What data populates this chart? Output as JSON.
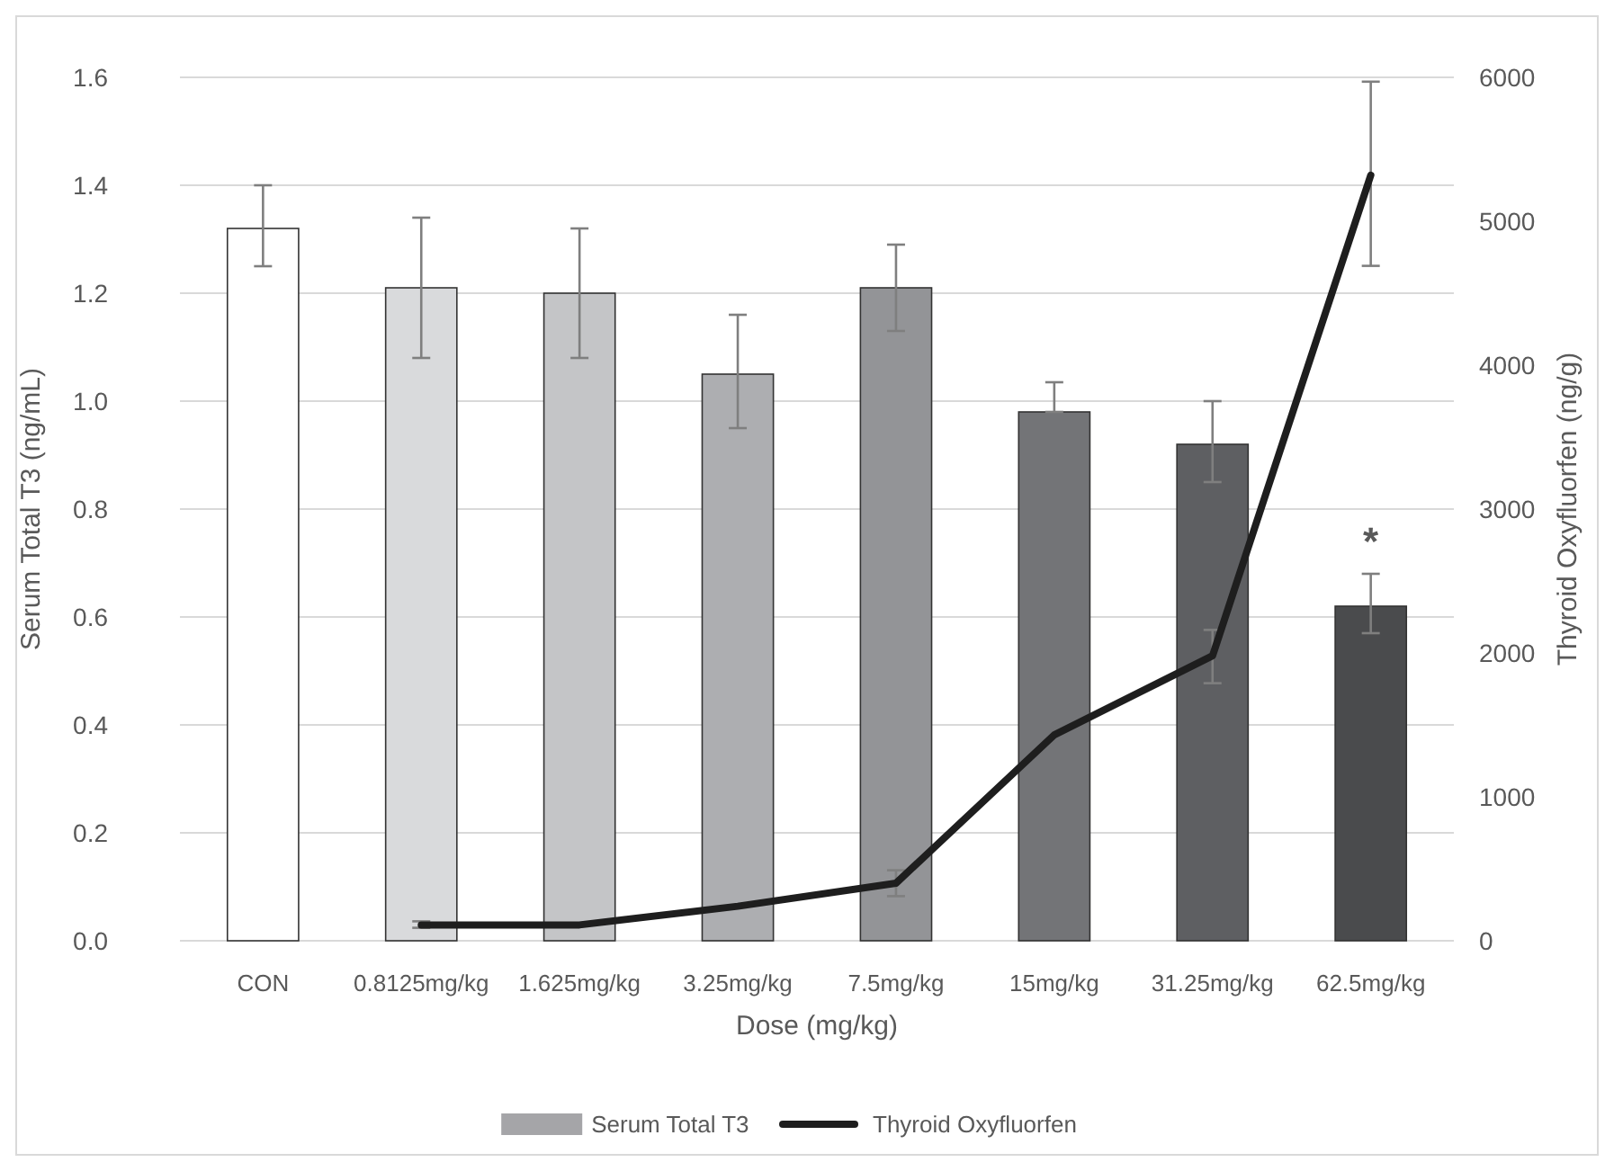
{
  "chart_data": {
    "type": "bar",
    "xlabel": "Dose (mg/kg)",
    "ylabel": "Serum Total T3 (ng/mL)",
    "y2label": "Thyroid Oxyfluorfen (ng/g)",
    "categories": [
      "CON",
      "0.8125mg/kg",
      "1.625mg/kg",
      "3.25mg/kg",
      "7.5mg/kg",
      "15mg/kg",
      "31.25mg/kg",
      "62.5mg/kg"
    ],
    "series": [
      {
        "name": "Serum Total T3",
        "color": "#a5a5a8",
        "colors": [
          "#ffffff",
          "#d9dadc",
          "#c4c5c7",
          "#adaeb1",
          "#939497",
          "#737477",
          "#5e5f62",
          "#4a4b4d"
        ],
        "values": [
          1.32,
          1.21,
          1.2,
          1.05,
          1.21,
          0.98,
          0.92,
          0.62
        ],
        "errors": [
          [
            1.25,
            1.4
          ],
          [
            1.08,
            1.34
          ],
          [
            1.08,
            1.32
          ],
          [
            0.95,
            1.16
          ],
          [
            1.13,
            1.29
          ],
          [
            0.98,
            1.035
          ],
          [
            0.85,
            1.0
          ],
          [
            0.57,
            0.68
          ]
        ]
      },
      {
        "name": "Thyroid Oxyfluorfen",
        "type": "line",
        "axis": "y2",
        "color": "#1e1e1e",
        "values": [
          null,
          110,
          110,
          240,
          400,
          1430,
          1980,
          5320
        ],
        "errors": [
          null,
          [
            90,
            135
          ],
          null,
          null,
          [
            310,
            490
          ],
          null,
          [
            1790,
            2160
          ],
          [
            4690,
            5970
          ]
        ]
      }
    ],
    "annotations": [
      {
        "text": "*",
        "x": "62.5mg/kg",
        "y": 0.62
      }
    ],
    "ylim": [
      0,
      1.6
    ],
    "yticks": [
      {
        "value": 0,
        "label": "0.0"
      },
      {
        "value": 0.2,
        "label": "0.2"
      },
      {
        "value": 0.4,
        "label": "0.4"
      },
      {
        "value": 0.6,
        "label": "0.6"
      },
      {
        "value": 0.8,
        "label": "0.8"
      },
      {
        "value": 1,
        "label": "1.0"
      },
      {
        "value": 1.2,
        "label": "1.2"
      },
      {
        "value": 1.4,
        "label": "1.4"
      },
      {
        "value": 1.6,
        "label": "1.6"
      }
    ],
    "y2lim": [
      0,
      6000
    ],
    "y2ticks": [
      0,
      1000,
      2000,
      3000,
      4000,
      5000,
      6000
    ],
    "grid": "y",
    "legend": "bottom"
  }
}
